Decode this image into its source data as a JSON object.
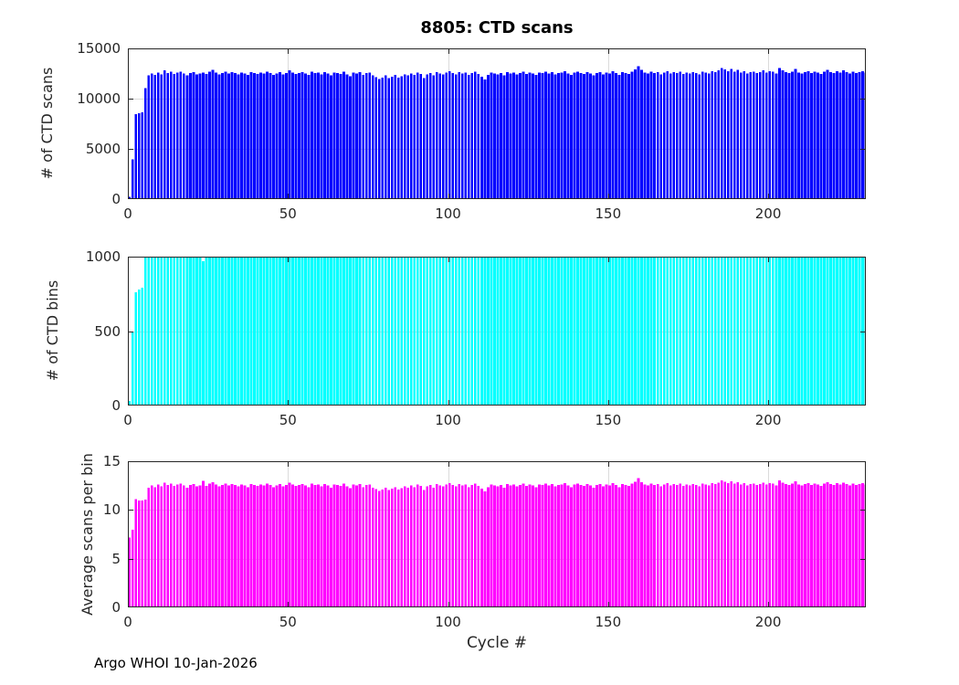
{
  "figure": {
    "title": "8805: CTD scans",
    "xlabel": "Cycle #",
    "footer": "Argo WHOI 10-Jan-2026",
    "background": "#ffffff",
    "text_color": "#262626",
    "grid_color": "#dbdbdb",
    "axis_color": "#262626"
  },
  "chart_data": [
    {
      "type": "bar",
      "name": "ctd-scans",
      "title": "8805: CTD scans",
      "ylabel": "# of CTD scans",
      "color": "#0000ff",
      "ylim": [
        0,
        15000
      ],
      "yticks": [
        0,
        5000,
        10000,
        15000
      ],
      "xlim": [
        0,
        230.5
      ],
      "xticks": [
        0,
        50,
        100,
        150,
        200
      ],
      "grid": true,
      "x_start_cycle": 0,
      "values": [
        230,
        3950,
        8450,
        8550,
        8650,
        11050,
        12300,
        12500,
        12350,
        12600,
        12400,
        12800,
        12550,
        12700,
        12450,
        12600,
        12700,
        12500,
        12300,
        12550,
        12650,
        12400,
        12500,
        12600,
        12450,
        12700,
        12850,
        12600,
        12400,
        12550,
        12700,
        12500,
        12650,
        12550,
        12400,
        12600,
        12500,
        12350,
        12650,
        12550,
        12450,
        12600,
        12500,
        12700,
        12550,
        12350,
        12500,
        12650,
        12400,
        12550,
        12800,
        12600,
        12450,
        12550,
        12650,
        12500,
        12350,
        12700,
        12550,
        12600,
        12400,
        12650,
        12500,
        12300,
        12600,
        12550,
        12450,
        12700,
        12400,
        12250,
        12600,
        12500,
        12650,
        12350,
        12550,
        12600,
        12300,
        12150,
        11950,
        12100,
        12300,
        12050,
        12200,
        12350,
        12100,
        12250,
        12400,
        12300,
        12500,
        12350,
        12600,
        12450,
        12050,
        12400,
        12550,
        12300,
        12650,
        12500,
        12400,
        12600,
        12750,
        12550,
        12400,
        12650,
        12500,
        12600,
        12350,
        12550,
        12700,
        12450,
        12200,
        11900,
        12350,
        12600,
        12500,
        12400,
        12550,
        12300,
        12650,
        12500,
        12600,
        12400,
        12550,
        12700,
        12450,
        12600,
        12500,
        12350,
        12600,
        12550,
        12700,
        12500,
        12650,
        12400,
        12550,
        12600,
        12750,
        12500,
        12350,
        12600,
        12700,
        12550,
        12450,
        12650,
        12500,
        12300,
        12550,
        12650,
        12400,
        12600,
        12500,
        12750,
        12550,
        12350,
        12650,
        12550,
        12450,
        12700,
        12900,
        13250,
        12850,
        12600,
        12500,
        12700,
        12550,
        12650,
        12400,
        12600,
        12750,
        12500,
        12650,
        12550,
        12700,
        12450,
        12600,
        12500,
        12650,
        12550,
        12400,
        12700,
        12600,
        12500,
        12750,
        12650,
        12800,
        13050,
        12900,
        12750,
        12950,
        12700,
        12850,
        12600,
        12750,
        12500,
        12650,
        12700,
        12550,
        12650,
        12800,
        12600,
        12750,
        12700,
        12500,
        13050,
        12800,
        12650,
        12550,
        12700,
        12950,
        12600,
        12500,
        12650,
        12750,
        12550,
        12700,
        12600,
        12450,
        12700,
        12850,
        12650,
        12550,
        12750,
        12600,
        12800,
        12650,
        12500,
        12700,
        12550,
        12650,
        12750,
        12600
      ]
    },
    {
      "type": "bar",
      "name": "ctd-bins",
      "ylabel": "# of CTD bins",
      "color": "#00ffff",
      "ylim": [
        0,
        1000
      ],
      "yticks": [
        0,
        500,
        1000
      ],
      "xlim": [
        0,
        230.5
      ],
      "xticks": [
        0,
        50,
        100,
        150,
        200
      ],
      "grid": true,
      "x_start_cycle": 0,
      "values_encoding": {
        "count": 231,
        "default": 1000,
        "overrides": {
          "0": 32,
          "1": 495,
          "2": 760,
          "3": 778,
          "4": 790,
          "23": 970
        }
      }
    },
    {
      "type": "bar",
      "name": "average-scans-per-bin",
      "ylabel": "Average scans per bin",
      "xlabel": "Cycle #",
      "color": "#ff00ff",
      "ylim": [
        0,
        15
      ],
      "yticks": [
        0,
        5,
        10,
        15
      ],
      "xlim": [
        0,
        230.5
      ],
      "xticks": [
        0,
        50,
        100,
        150,
        200
      ],
      "grid": true,
      "x_start_cycle": 0,
      "values": [
        7.19,
        7.98,
        11.12,
        10.99,
        10.95,
        11.05,
        12.3,
        12.5,
        12.35,
        12.6,
        12.4,
        12.8,
        12.55,
        12.7,
        12.45,
        12.6,
        12.7,
        12.5,
        12.3,
        12.55,
        12.65,
        12.4,
        12.5,
        12.99,
        12.45,
        12.7,
        12.85,
        12.6,
        12.4,
        12.55,
        12.7,
        12.5,
        12.65,
        12.55,
        12.4,
        12.6,
        12.5,
        12.35,
        12.65,
        12.55,
        12.45,
        12.6,
        12.5,
        12.7,
        12.55,
        12.35,
        12.5,
        12.65,
        12.4,
        12.55,
        12.8,
        12.6,
        12.45,
        12.55,
        12.65,
        12.5,
        12.35,
        12.7,
        12.55,
        12.6,
        12.4,
        12.65,
        12.5,
        12.3,
        12.6,
        12.55,
        12.45,
        12.7,
        12.4,
        12.25,
        12.6,
        12.5,
        12.65,
        12.35,
        12.55,
        12.6,
        12.3,
        12.15,
        11.95,
        12.1,
        12.3,
        12.05,
        12.2,
        12.35,
        12.1,
        12.25,
        12.4,
        12.3,
        12.5,
        12.35,
        12.6,
        12.45,
        12.05,
        12.4,
        12.55,
        12.3,
        12.65,
        12.5,
        12.4,
        12.6,
        12.75,
        12.55,
        12.4,
        12.65,
        12.5,
        12.6,
        12.35,
        12.55,
        12.7,
        12.45,
        12.2,
        11.9,
        12.35,
        12.6,
        12.5,
        12.4,
        12.55,
        12.3,
        12.65,
        12.5,
        12.6,
        12.4,
        12.55,
        12.7,
        12.45,
        12.6,
        12.5,
        12.35,
        12.6,
        12.55,
        12.7,
        12.5,
        12.65,
        12.4,
        12.55,
        12.6,
        12.75,
        12.5,
        12.35,
        12.6,
        12.7,
        12.55,
        12.45,
        12.65,
        12.5,
        12.3,
        12.55,
        12.65,
        12.4,
        12.6,
        12.5,
        12.75,
        12.55,
        12.35,
        12.65,
        12.55,
        12.45,
        12.7,
        12.9,
        13.25,
        12.85,
        12.6,
        12.5,
        12.7,
        12.55,
        12.65,
        12.4,
        12.6,
        12.75,
        12.5,
        12.65,
        12.55,
        12.7,
        12.45,
        12.6,
        12.5,
        12.65,
        12.55,
        12.4,
        12.7,
        12.6,
        12.5,
        12.75,
        12.65,
        12.8,
        13.05,
        12.9,
        12.75,
        12.95,
        12.7,
        12.85,
        12.6,
        12.75,
        12.5,
        12.65,
        12.7,
        12.55,
        12.65,
        12.8,
        12.6,
        12.75,
        12.7,
        12.5,
        13.05,
        12.8,
        12.65,
        12.55,
        12.7,
        12.95,
        12.6,
        12.5,
        12.65,
        12.75,
        12.55,
        12.7,
        12.6,
        12.45,
        12.7,
        12.85,
        12.65,
        12.55,
        12.75,
        12.6,
        12.8,
        12.65,
        12.5,
        12.7,
        12.55,
        12.65,
        12.75,
        12.6
      ]
    }
  ]
}
